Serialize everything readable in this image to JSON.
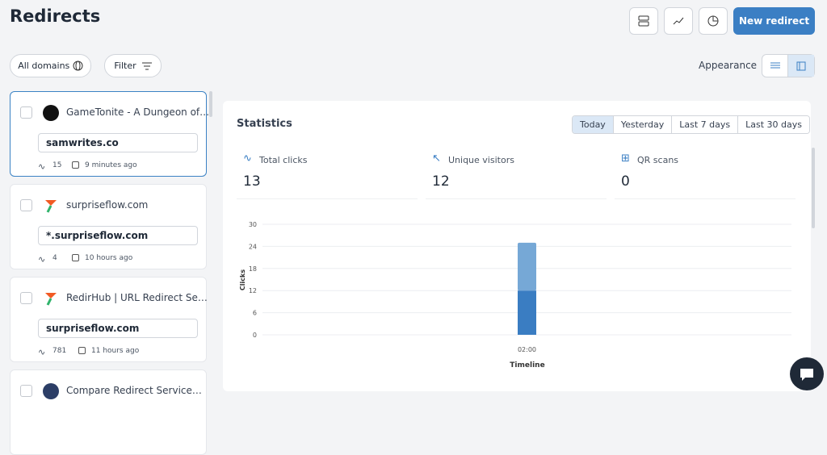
{
  "header": {
    "title": "Redirects",
    "new_button": "New redirect"
  },
  "toolbar": {
    "domains": "All domains",
    "filter": "Filter",
    "appearance": "Appearance"
  },
  "redirects": [
    {
      "name": "GameTonite - A Dungeon of…",
      "domain": "samwrites.co",
      "clicks": 15,
      "time": "9 minutes ago"
    },
    {
      "name": "surpriseflow.com",
      "domain": "*.surpriseflow.com",
      "clicks": 4,
      "time": "10 hours ago"
    },
    {
      "name": "RedirHub | URL Redirect Se…",
      "domain": "surpriseflow.com",
      "clicks": 781,
      "time": "11 hours ago"
    },
    {
      "name": "Compare Redirect Service…"
    }
  ],
  "statistics": {
    "title": "Statistics",
    "ranges": [
      "Today",
      "Yesterday",
      "Last 7 days",
      "Last 30 days"
    ],
    "metrics": [
      {
        "label": "Total clicks",
        "value": 13
      },
      {
        "label": "Unique visitors",
        "value": 12
      },
      {
        "label": "QR scans",
        "value": 0
      }
    ],
    "chart": {
      "type": "bar",
      "ylabel": "Clicks",
      "xlabel": "Timeline",
      "categories": [
        "02:00"
      ],
      "series": [
        {
          "color": "#3a7dc2",
          "values": [
            12
          ]
        },
        {
          "color": "#76a8d6",
          "values": [
            13
          ]
        }
      ],
      "stacked": true,
      "ylim": [
        0,
        30
      ],
      "yticks": [
        0,
        6,
        12,
        18,
        24,
        30
      ],
      "grid": true
    }
  }
}
